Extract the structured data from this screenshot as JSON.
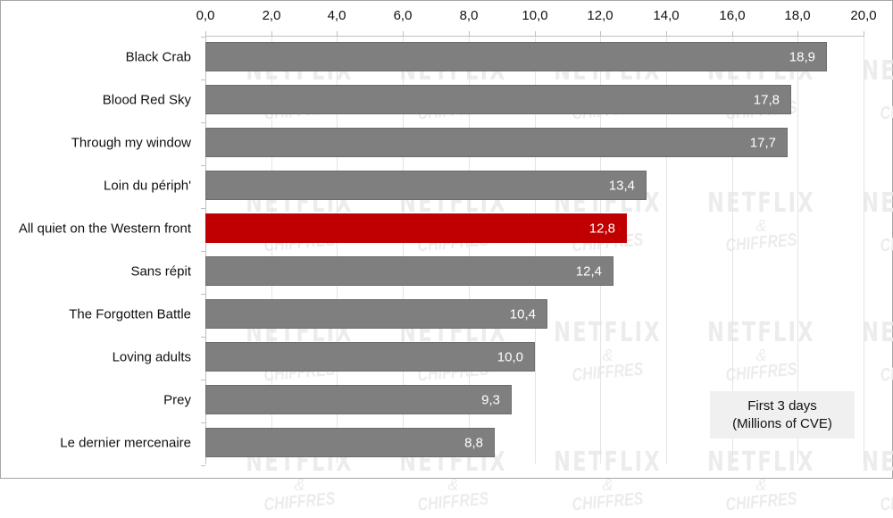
{
  "chart_data": {
    "type": "bar",
    "orientation": "horizontal",
    "title": "",
    "xlabel": "",
    "ylabel": "",
    "xlim": [
      0,
      20
    ],
    "x_ticks": [
      "0,0",
      "2,0",
      "4,0",
      "6,0",
      "8,0",
      "10,0",
      "12,0",
      "14,0",
      "16,0",
      "18,0",
      "20,0"
    ],
    "x_tick_values": [
      0,
      2,
      4,
      6,
      8,
      10,
      12,
      14,
      16,
      18,
      20
    ],
    "x_axis_position": "top",
    "grid": true,
    "categories": [
      "Black Crab",
      "Blood Red Sky",
      "Through my window",
      "Loin du périph'",
      "All quiet on the Western front",
      "Sans répit",
      "The Forgotten Battle",
      "Loving adults",
      "Prey",
      "Le dernier mercenaire"
    ],
    "values": [
      18.9,
      17.8,
      17.7,
      13.4,
      12.8,
      12.4,
      10.4,
      10.0,
      9.3,
      8.8
    ],
    "value_labels": [
      "18,9",
      "17,8",
      "17,7",
      "13,4",
      "12,8",
      "12,4",
      "10,4",
      "10,0",
      "9,3",
      "8,8"
    ],
    "highlighted_category": "All quiet on the Western front",
    "colors": {
      "default": "#7f7f7f",
      "highlight": "#c00000",
      "label_text": "#ffffff"
    },
    "legend": {
      "text_line1": "First 3 days",
      "text_line2": "(Millions of CVE)",
      "position": "bottom-right"
    },
    "watermark": {
      "line1": "NETFLIX",
      "line2": "&",
      "line3": "CHIFFRES"
    }
  }
}
